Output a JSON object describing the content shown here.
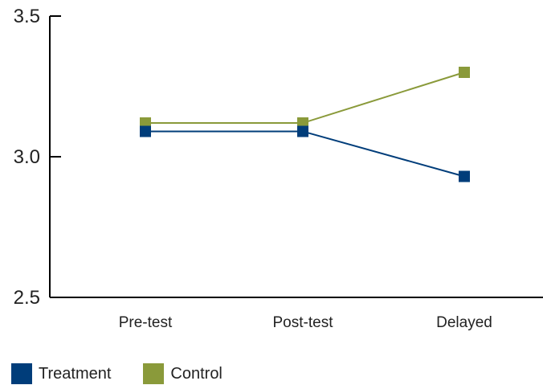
{
  "chart_data": {
    "type": "line",
    "categories": [
      "Pre-test",
      "Post-test",
      "Delayed"
    ],
    "series": [
      {
        "name": "Treatment",
        "values": [
          3.09,
          3.09,
          2.93
        ],
        "color": "#003d7a"
      },
      {
        "name": "Control",
        "values": [
          3.12,
          3.12,
          3.3
        ],
        "color": "#8a9a3a"
      }
    ],
    "yticks": [
      "2.5",
      "3.0",
      "3.5"
    ],
    "ylim": [
      2.5,
      3.5
    ],
    "grid": false,
    "legend_position": "bottom-left"
  }
}
